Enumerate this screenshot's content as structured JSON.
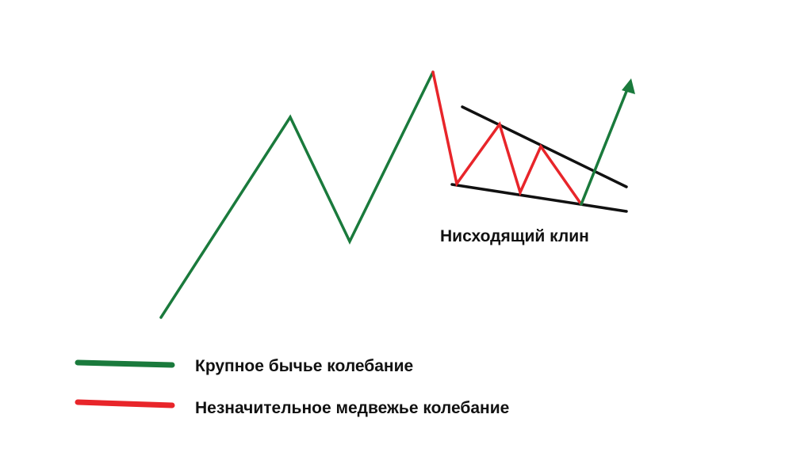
{
  "colors": {
    "bullish": "#1a7a3c",
    "bearish": "#e8252a",
    "wedge_lines": "#111111",
    "background": "#ffffff"
  },
  "wedge_label": "Нисходящий клин",
  "legend": {
    "items": [
      {
        "key": "bullish",
        "label": "Крупное бычье колебание"
      },
      {
        "key": "bearish",
        "label": "Незначительное медвежье колебание"
      }
    ]
  },
  "icons": {
    "breakout_arrow": "arrow-head-icon"
  }
}
